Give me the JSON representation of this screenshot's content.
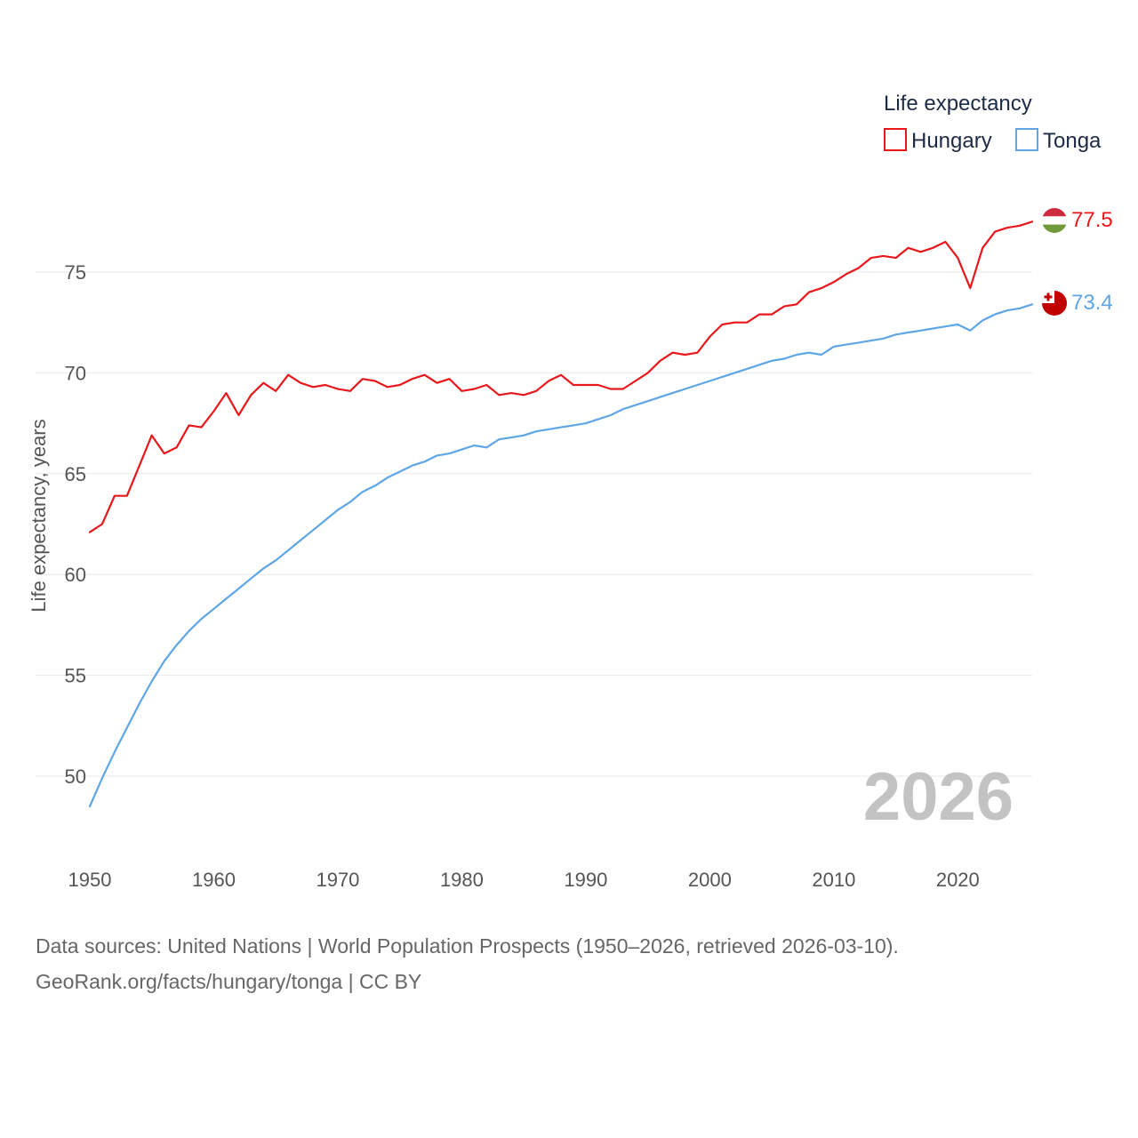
{
  "chart_data": {
    "type": "line",
    "ylabel": "Life expectancy, years",
    "legend": {
      "title": "Life expectancy",
      "position": "top-right"
    },
    "xlim": [
      1950,
      2026
    ],
    "ylim": [
      47.5,
      79
    ],
    "x_ticks": [
      1950,
      1960,
      1970,
      1980,
      1990,
      2000,
      2010,
      2020
    ],
    "y_ticks": [
      50,
      55,
      60,
      65,
      70,
      75
    ],
    "grid": true,
    "year_label": "2026",
    "x": [
      1950,
      1951,
      1952,
      1953,
      1954,
      1955,
      1956,
      1957,
      1958,
      1959,
      1960,
      1961,
      1962,
      1963,
      1964,
      1965,
      1966,
      1967,
      1968,
      1969,
      1970,
      1971,
      1972,
      1973,
      1974,
      1975,
      1976,
      1977,
      1978,
      1979,
      1980,
      1981,
      1982,
      1983,
      1984,
      1985,
      1986,
      1987,
      1988,
      1989,
      1990,
      1991,
      1992,
      1993,
      1994,
      1995,
      1996,
      1997,
      1998,
      1999,
      2000,
      2001,
      2002,
      2003,
      2004,
      2005,
      2006,
      2007,
      2008,
      2009,
      2010,
      2011,
      2012,
      2013,
      2014,
      2015,
      2016,
      2017,
      2018,
      2019,
      2020,
      2021,
      2022,
      2023,
      2024,
      2025,
      2026
    ],
    "series": [
      {
        "name": "Hungary",
        "color": "#e8171b",
        "end_label": "77.5",
        "values": [
          62.1,
          62.5,
          63.9,
          63.9,
          65.4,
          66.9,
          66.0,
          66.3,
          67.4,
          67.3,
          68.1,
          69.0,
          67.9,
          68.9,
          69.5,
          69.1,
          69.9,
          69.5,
          69.3,
          69.4,
          69.2,
          69.1,
          69.7,
          69.6,
          69.3,
          69.4,
          69.7,
          69.9,
          69.5,
          69.7,
          69.1,
          69.2,
          69.4,
          68.9,
          69.0,
          68.9,
          69.1,
          69.6,
          69.9,
          69.4,
          69.4,
          69.4,
          69.2,
          69.2,
          69.6,
          70.0,
          70.6,
          71.0,
          70.9,
          71.0,
          71.8,
          72.4,
          72.5,
          72.5,
          72.9,
          72.9,
          73.3,
          73.4,
          74.0,
          74.2,
          74.5,
          74.9,
          75.2,
          75.7,
          75.8,
          75.7,
          76.2,
          76.0,
          76.2,
          76.5,
          75.7,
          74.2,
          76.2,
          77.0,
          77.2,
          77.3,
          77.5
        ]
      },
      {
        "name": "Tonga",
        "color": "#5ea6e6",
        "end_label": "73.4",
        "values": [
          48.5,
          49.9,
          51.2,
          52.4,
          53.6,
          54.7,
          55.7,
          56.5,
          57.2,
          57.8,
          58.3,
          58.8,
          59.3,
          59.8,
          60.3,
          60.7,
          61.2,
          61.7,
          62.2,
          62.7,
          63.2,
          63.6,
          64.1,
          64.4,
          64.8,
          65.1,
          65.4,
          65.6,
          65.9,
          66.0,
          66.2,
          66.4,
          66.3,
          66.7,
          66.8,
          66.9,
          67.1,
          67.2,
          67.3,
          67.4,
          67.5,
          67.7,
          67.9,
          68.2,
          68.4,
          68.6,
          68.8,
          69.0,
          69.2,
          69.4,
          69.6,
          69.8,
          70.0,
          70.2,
          70.4,
          70.6,
          70.7,
          70.9,
          71.0,
          70.9,
          71.3,
          71.4,
          71.5,
          71.6,
          71.7,
          71.9,
          72.0,
          72.1,
          72.2,
          72.3,
          72.4,
          72.1,
          72.6,
          72.9,
          73.1,
          73.2,
          73.4
        ]
      }
    ]
  },
  "footer": {
    "source_line": "Data sources: United Nations | World Population Prospects (1950–2026, retrieved 2026-03-10).",
    "credit_line": "GeoRank.org/facts/hungary/tonga | CC BY"
  }
}
